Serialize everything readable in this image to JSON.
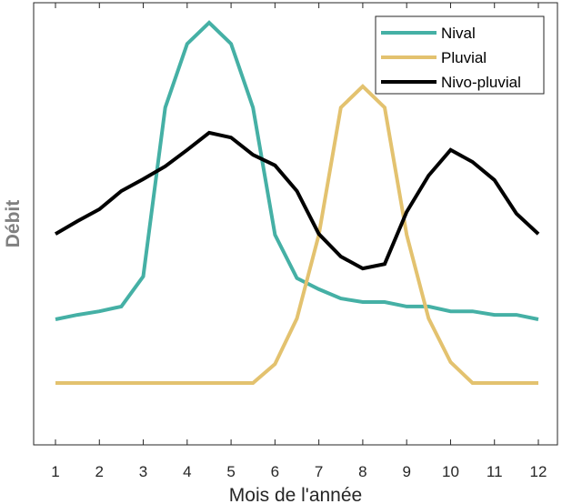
{
  "chart_data": {
    "type": "line",
    "title": "",
    "xlabel": "Mois de l'année",
    "ylabel": "Débit",
    "xlim": [
      0.5,
      12.5
    ],
    "ylim": [
      0,
      100
    ],
    "xticks": [
      1,
      2,
      3,
      4,
      5,
      6,
      7,
      8,
      9,
      10,
      11,
      12
    ],
    "xtick_labels": [
      "1",
      "2",
      "3",
      "4",
      "5",
      "6",
      "7",
      "8",
      "9",
      "10",
      "11",
      "12"
    ],
    "grid": false,
    "legend_position": "top-right",
    "x": [
      1,
      1.5,
      2,
      2.5,
      3,
      3.5,
      4,
      4.5,
      5,
      5.5,
      6,
      6.5,
      7,
      7.5,
      8,
      8.5,
      9,
      9.5,
      10,
      10.5,
      11,
      11.5,
      12
    ],
    "series": [
      {
        "name": "Nival",
        "color": "#45b0a5",
        "values": [
          28.4,
          29.4,
          30.2,
          31.3,
          38.1,
          76.3,
          90.7,
          95.5,
          90.7,
          76.3,
          47.5,
          37.7,
          35.2,
          33.1,
          32.3,
          32.3,
          31.3,
          31.3,
          30.2,
          30.2,
          29.4,
          29.4,
          28.4
        ]
      },
      {
        "name": "Pluvial",
        "color": "#e3c26f",
        "values": [
          14,
          14,
          14,
          14,
          14,
          14,
          14,
          14,
          14,
          14,
          18.3,
          28.6,
          47.5,
          76.3,
          81.1,
          76.3,
          47.5,
          28.6,
          18.7,
          14,
          14,
          14,
          14
        ]
      },
      {
        "name": "Nivo-pluvial",
        "color": "#000000",
        "values": [
          47.7,
          50.6,
          53.3,
          57.4,
          60.1,
          63.0,
          66.7,
          70.6,
          69.5,
          65.6,
          63.2,
          57.4,
          47.7,
          42.6,
          39.9,
          40.9,
          52.7,
          60.9,
          66.7,
          64.0,
          59.9,
          52.3,
          47.7
        ]
      }
    ]
  }
}
